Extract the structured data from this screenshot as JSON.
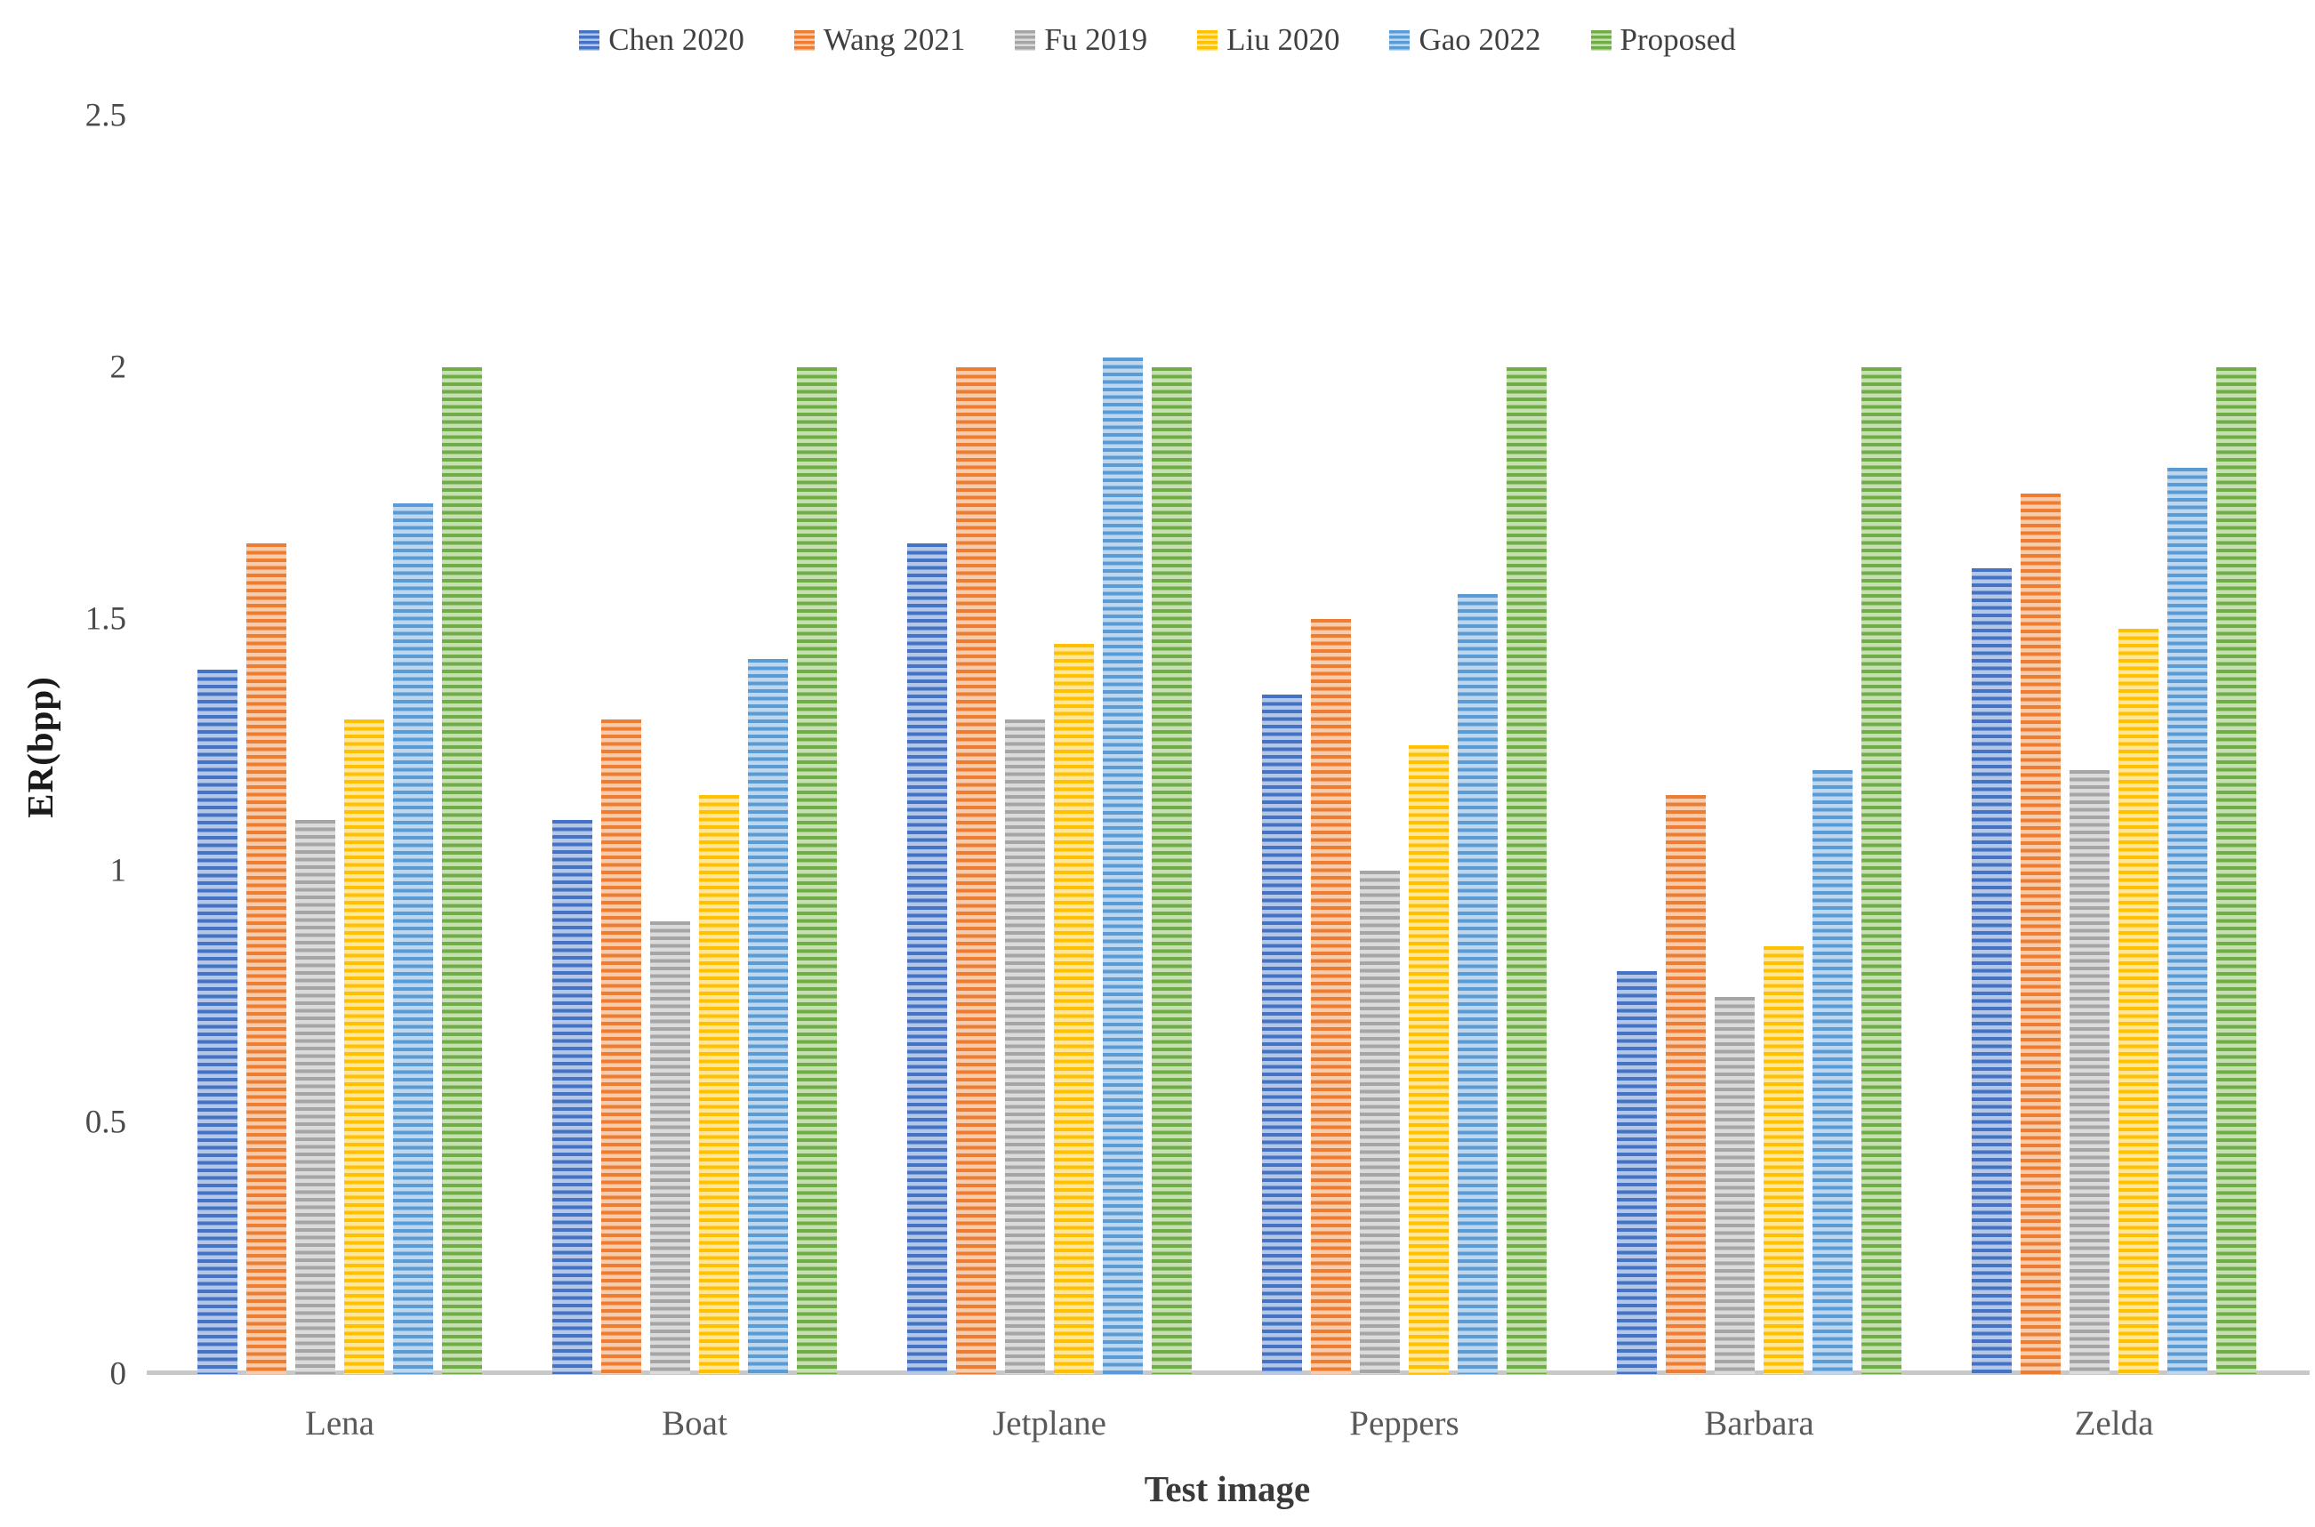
{
  "legend": {
    "items": [
      "Chen 2020",
      "Wang 2021",
      "Fu 2019",
      "Liu 2020",
      "Gao 2022",
      "Proposed"
    ]
  },
  "y_axis": {
    "title": "ER(bpp)",
    "tick_labels": [
      "2.5",
      "2",
      "1.5",
      "1",
      "0.5",
      "0"
    ]
  },
  "x_axis": {
    "title": "Test image"
  },
  "colors": {
    "axis_line": "#c8c8c8",
    "tick_text": "#4a4a4a",
    "category_text": "#595959",
    "legend_text": "#404040"
  },
  "chart_data": {
    "type": "bar",
    "title": "",
    "xlabel": "Test image",
    "ylabel": "ER(bpp)",
    "ylim": [
      0,
      2.5
    ],
    "yticks": [
      2.5,
      2,
      1.5,
      1,
      0.5,
      0
    ],
    "grid": false,
    "legend_position": "top",
    "categories": [
      "Lena",
      "Boat",
      "Jetplane",
      "Peppers",
      "Barbara",
      "Zelda"
    ],
    "series": [
      {
        "name": "Chen 2020",
        "color": "#4472C4",
        "tint": "#B4C7E7",
        "values": [
          1.4,
          1.1,
          1.65,
          1.35,
          0.8,
          1.6
        ]
      },
      {
        "name": "Wang 2021",
        "color": "#ED7D31",
        "tint": "#F8CBAD",
        "values": [
          1.65,
          1.3,
          2.0,
          1.5,
          1.15,
          1.75
        ]
      },
      {
        "name": "Fu 2019",
        "color": "#A5A5A5",
        "tint": "#DBDBDB",
        "values": [
          1.1,
          0.9,
          1.3,
          1.0,
          0.75,
          1.2
        ]
      },
      {
        "name": "Liu 2020",
        "color": "#FFC000",
        "tint": "#FFE699",
        "values": [
          1.3,
          1.15,
          1.45,
          1.25,
          0.85,
          1.48
        ]
      },
      {
        "name": "Gao 2022",
        "color": "#5B9BD5",
        "tint": "#BDD7EE",
        "values": [
          1.73,
          1.42,
          2.02,
          1.55,
          1.2,
          1.8
        ]
      },
      {
        "name": "Proposed",
        "color": "#70AD47",
        "tint": "#C6E0B4",
        "values": [
          2.0,
          2.0,
          2.0,
          2.0,
          2.0,
          2.0
        ]
      }
    ]
  }
}
